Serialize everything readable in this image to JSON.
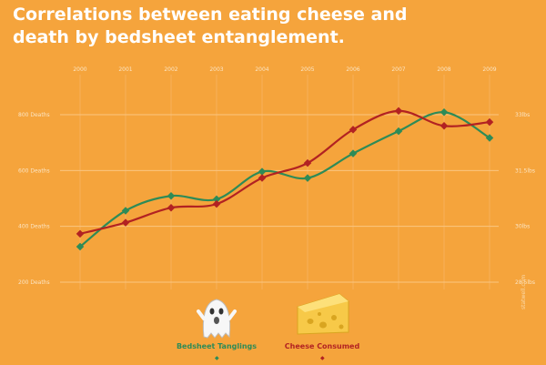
{
  "title": "Correlations between eating cheese and death by bedsheet entanglement.",
  "watermark": "statwell.com",
  "colors": {
    "background": "#f5a43c",
    "bedsheet": "#2e8b57",
    "cheese": "#b22222",
    "tick": "#fbe5c4",
    "grid": "#fbc681"
  },
  "chart_data": {
    "type": "line",
    "title": "Correlations between eating cheese and death by bedsheet entanglement.",
    "x": [
      "2000",
      "2001",
      "2002",
      "2003",
      "2004",
      "2005",
      "2006",
      "2007",
      "2008",
      "2009"
    ],
    "left_axis": {
      "ticks": [
        800,
        600,
        400,
        200
      ],
      "tick_labels": [
        "800 Deaths",
        "600 Deaths",
        "400 Deaths",
        "200 Deaths"
      ],
      "range": [
        200,
        800
      ]
    },
    "right_axis": {
      "ticks": [
        33,
        31.5,
        30,
        28.5
      ],
      "tick_labels": [
        "33lbs",
        "31.5lbs",
        "30lbs",
        "28.5lbs"
      ],
      "range": [
        28.5,
        33
      ]
    },
    "series": [
      {
        "name": "Bedsheet Tanglings",
        "axis": "left",
        "icon": "ghost-icon",
        "color": "#2e8b57",
        "values": [
          327,
          456,
          509,
          497,
          596,
          573,
          661,
          741,
          809,
          717
        ]
      },
      {
        "name": "Cheese Consumed",
        "axis": "right",
        "icon": "cheese-icon",
        "color": "#b22222",
        "values": [
          29.8,
          30.1,
          30.5,
          30.6,
          31.3,
          31.7,
          32.6,
          33.1,
          32.7,
          32.8
        ]
      }
    ],
    "grid": true,
    "legend": "bottom"
  }
}
